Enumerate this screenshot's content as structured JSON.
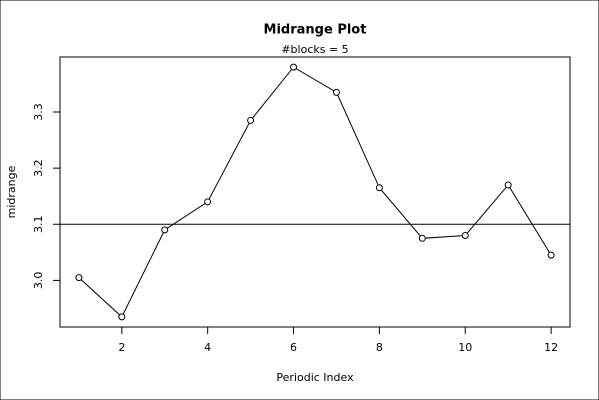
{
  "chart_data": {
    "type": "line",
    "title": "Midrange Plot",
    "subtitle": "#blocks =  5",
    "x_label": "Periodic Index",
    "y_label": "midrange",
    "x": [
      1,
      2,
      3,
      4,
      5,
      6,
      7,
      8,
      9,
      10,
      11,
      12
    ],
    "values": [
      3.005,
      2.935,
      3.09,
      3.14,
      3.285,
      3.38,
      3.335,
      3.165,
      3.075,
      3.08,
      3.17,
      3.045
    ],
    "color": "#000000",
    "hline": 3.1,
    "xlim": [
      0.56,
      12.44
    ],
    "ylim": [
      2.917,
      3.398
    ],
    "xticks": [
      2,
      4,
      6,
      8,
      10,
      12
    ],
    "yticks": [
      {
        "value": 3,
        "label": "3.0"
      },
      {
        "value": 3.1,
        "label": "3.1"
      },
      {
        "value": 3.2,
        "label": "3.2"
      },
      {
        "value": 3.3,
        "label": "3.3"
      }
    ]
  }
}
